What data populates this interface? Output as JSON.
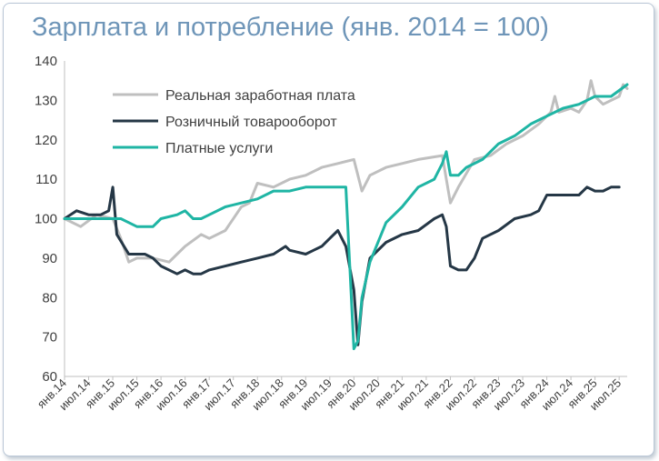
{
  "chart_data": {
    "type": "line",
    "title": "Зарплата и потребление (янв. 2014 = 100)",
    "xlabel": "",
    "ylabel": "",
    "ylim": [
      60,
      140
    ],
    "yticks": [
      "60",
      "70",
      "80",
      "90",
      "100",
      "110",
      "120",
      "130",
      "140"
    ],
    "xticks": [
      "янв.14",
      "июл.14",
      "янв.15",
      "июл.15",
      "янв.16",
      "июл.16",
      "янв.17",
      "июл.17",
      "янв.18",
      "июл.18",
      "янв.19",
      "июл.19",
      "янв.20",
      "июл.20",
      "янв.21",
      "июл.21",
      "янв.22",
      "июл.22",
      "янв.23",
      "июл.23",
      "янв.24",
      "июл.24",
      "янв.25",
      "июл.25"
    ],
    "legend_position": "top-left",
    "grid": false,
    "x_start": "2014-01",
    "series": [
      {
        "name": "Реальная заработная плата",
        "color": "#bfbfbf",
        "knots": [
          [
            0,
            100
          ],
          [
            4,
            98
          ],
          [
            8,
            101
          ],
          [
            12,
            100
          ],
          [
            14,
            95
          ],
          [
            16,
            89
          ],
          [
            18,
            90
          ],
          [
            22,
            90
          ],
          [
            26,
            89
          ],
          [
            28,
            91
          ],
          [
            30,
            93
          ],
          [
            34,
            96
          ],
          [
            36,
            95
          ],
          [
            40,
            97
          ],
          [
            44,
            103
          ],
          [
            46,
            104
          ],
          [
            48,
            109
          ],
          [
            52,
            108
          ],
          [
            56,
            110
          ],
          [
            60,
            111
          ],
          [
            64,
            113
          ],
          [
            68,
            114
          ],
          [
            72,
            115
          ],
          [
            74,
            107
          ],
          [
            76,
            111
          ],
          [
            80,
            113
          ],
          [
            84,
            114
          ],
          [
            88,
            115
          ],
          [
            94,
            116
          ],
          [
            96,
            104
          ],
          [
            98,
            108
          ],
          [
            102,
            115
          ],
          [
            106,
            116
          ],
          [
            110,
            119
          ],
          [
            114,
            121
          ],
          [
            118,
            124
          ],
          [
            121,
            127
          ],
          [
            122,
            131
          ],
          [
            123,
            127
          ],
          [
            126,
            128
          ],
          [
            128,
            127
          ],
          [
            130,
            130
          ],
          [
            131,
            135
          ],
          [
            132,
            131
          ],
          [
            134,
            129
          ],
          [
            138,
            131
          ],
          [
            139,
            134
          ],
          [
            140,
            133
          ]
        ]
      },
      {
        "name": "Розничный товарооборот",
        "color": "#253746",
        "knots": [
          [
            0,
            100
          ],
          [
            3,
            102
          ],
          [
            6,
            101
          ],
          [
            9,
            101
          ],
          [
            11,
            102
          ],
          [
            12,
            108
          ],
          [
            13,
            96
          ],
          [
            16,
            91
          ],
          [
            20,
            91
          ],
          [
            22,
            90
          ],
          [
            24,
            88
          ],
          [
            28,
            86
          ],
          [
            30,
            87
          ],
          [
            32,
            86
          ],
          [
            34,
            86
          ],
          [
            36,
            87
          ],
          [
            40,
            88
          ],
          [
            44,
            89
          ],
          [
            48,
            90
          ],
          [
            52,
            91
          ],
          [
            55,
            93
          ],
          [
            56,
            92
          ],
          [
            60,
            91
          ],
          [
            62,
            92
          ],
          [
            64,
            93
          ],
          [
            66,
            95
          ],
          [
            68,
            97
          ],
          [
            70,
            93
          ],
          [
            72,
            82
          ],
          [
            73,
            68
          ],
          [
            74,
            79
          ],
          [
            76,
            90
          ],
          [
            80,
            94
          ],
          [
            84,
            96
          ],
          [
            88,
            97
          ],
          [
            92,
            100
          ],
          [
            94,
            101
          ],
          [
            95,
            98
          ],
          [
            96,
            88
          ],
          [
            98,
            87
          ],
          [
            100,
            87
          ],
          [
            102,
            90
          ],
          [
            104,
            95
          ],
          [
            108,
            97
          ],
          [
            112,
            100
          ],
          [
            116,
            101
          ],
          [
            118,
            102
          ],
          [
            120,
            106
          ],
          [
            122,
            106
          ],
          [
            126,
            106
          ],
          [
            128,
            106
          ],
          [
            130,
            108
          ],
          [
            132,
            107
          ],
          [
            134,
            107
          ],
          [
            136,
            108
          ],
          [
            138,
            108
          ]
        ]
      },
      {
        "name": "Платные услуги",
        "color": "#1fb5a4",
        "knots": [
          [
            0,
            100
          ],
          [
            4,
            100
          ],
          [
            8,
            100
          ],
          [
            12,
            100
          ],
          [
            14,
            100
          ],
          [
            16,
            99
          ],
          [
            18,
            98
          ],
          [
            20,
            98
          ],
          [
            22,
            98
          ],
          [
            24,
            100
          ],
          [
            28,
            101
          ],
          [
            30,
            102
          ],
          [
            32,
            100
          ],
          [
            34,
            100
          ],
          [
            36,
            101
          ],
          [
            40,
            103
          ],
          [
            44,
            104
          ],
          [
            48,
            105
          ],
          [
            52,
            107
          ],
          [
            56,
            107
          ],
          [
            60,
            108
          ],
          [
            64,
            108
          ],
          [
            68,
            108
          ],
          [
            70,
            108
          ],
          [
            72,
            67
          ],
          [
            73,
            69
          ],
          [
            74,
            80
          ],
          [
            76,
            89
          ],
          [
            80,
            99
          ],
          [
            84,
            103
          ],
          [
            88,
            108
          ],
          [
            92,
            110
          ],
          [
            94,
            114
          ],
          [
            95,
            117
          ],
          [
            96,
            111
          ],
          [
            98,
            111
          ],
          [
            100,
            113
          ],
          [
            104,
            115
          ],
          [
            108,
            119
          ],
          [
            112,
            121
          ],
          [
            116,
            124
          ],
          [
            120,
            126
          ],
          [
            124,
            128
          ],
          [
            128,
            129
          ],
          [
            132,
            131
          ],
          [
            136,
            131
          ],
          [
            140,
            134
          ]
        ]
      }
    ]
  }
}
